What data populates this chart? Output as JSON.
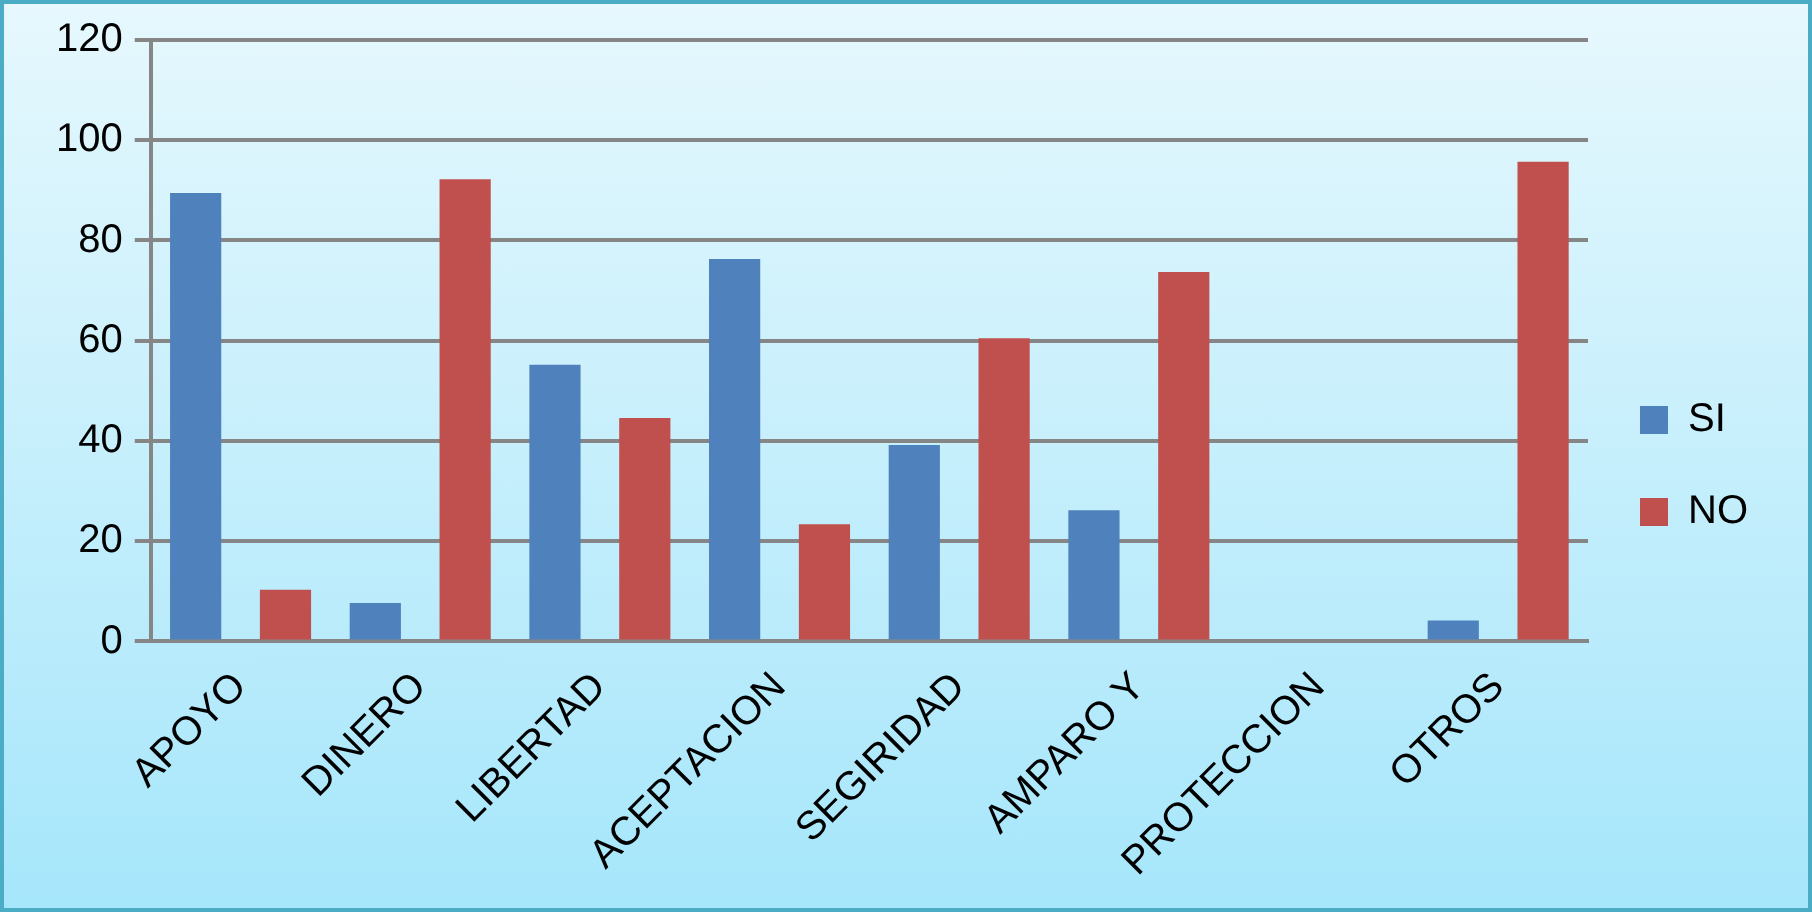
{
  "chart_data": {
    "type": "bar",
    "categories": [
      "APOYO",
      "DINERO",
      "LIBERTAD",
      "ACEPTACION",
      "SEGIRIDAD",
      "AMPARO Y",
      "PROTECCION",
      "OTROS"
    ],
    "series": [
      {
        "name": "SI",
        "color": "#4f81bd",
        "values": [
          89.5,
          7.7,
          55.2,
          76.3,
          39.2,
          26.2,
          0,
          4.2
        ]
      },
      {
        "name": "NO",
        "color": "#c0504d",
        "values": [
          10.3,
          92.2,
          44.6,
          23.4,
          60.5,
          73.7,
          0,
          95.7
        ]
      }
    ],
    "ylim": [
      0,
      120
    ],
    "yticks": [
      0,
      20,
      40,
      60,
      80,
      100,
      120
    ],
    "grid": "y",
    "legend": "right"
  }
}
